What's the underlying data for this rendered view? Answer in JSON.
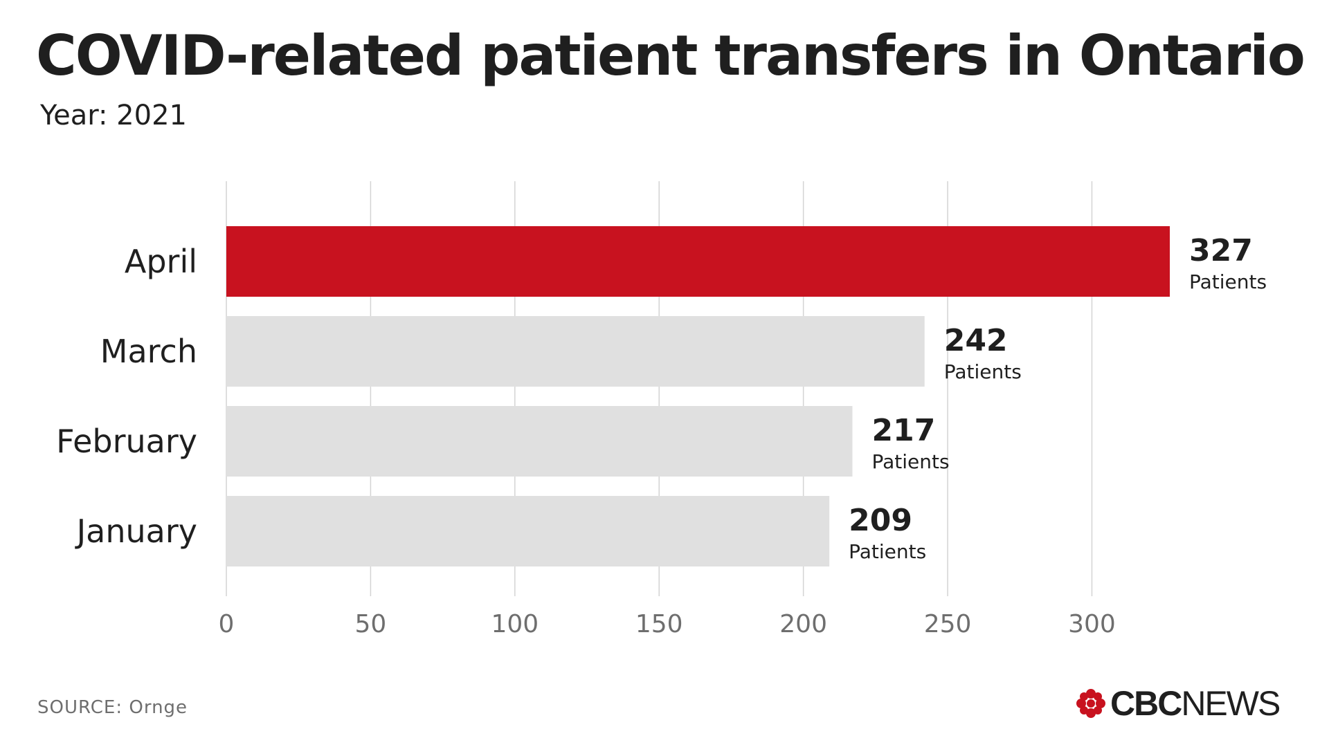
{
  "header": {
    "title": "COVID-related patient transfers in Ontario",
    "subtitle": "Year: 2021"
  },
  "footer": {
    "source": "SOURCE: Ornge",
    "logo_cbc": "CBC",
    "logo_news": "NEWS"
  },
  "colors": {
    "highlight": "#c8121f",
    "bar": "#e0e0e0",
    "grid": "#d4d4d4",
    "tick_text": "#6e6e6e",
    "text": "#1f1f1f"
  },
  "chart_data": {
    "type": "bar",
    "orientation": "horizontal",
    "title": "COVID-related patient transfers in Ontario",
    "subtitle": "Year: 2021",
    "xlabel": "",
    "ylabel": "",
    "categories": [
      "April",
      "March",
      "February",
      "January"
    ],
    "values": [
      327,
      242,
      217,
      209
    ],
    "value_unit_label": "Patients",
    "highlighted_category": "April",
    "xlim": [
      0,
      327
    ],
    "xticks": [
      0,
      50,
      100,
      150,
      200,
      250,
      300
    ],
    "grid": "vertical",
    "legend": "none"
  }
}
